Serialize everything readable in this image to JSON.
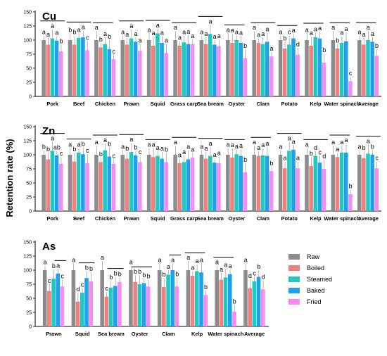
{
  "ylabel": "Retention rate (%)",
  "legend": [
    {
      "name": "Raw",
      "color": "#8c8c8c"
    },
    {
      "name": "Boiled",
      "color": "#f08080"
    },
    {
      "name": "Steamed",
      "color": "#1fc9c1"
    },
    {
      "name": "Baked",
      "color": "#1ea0ee"
    },
    {
      "name": "Fried",
      "color": "#f58cf5"
    }
  ],
  "chart_data": [
    {
      "type": "bar",
      "panel": "Cu",
      "ylim": [
        0,
        150
      ],
      "yticks": [
        0,
        25,
        50,
        75,
        100,
        125,
        150
      ],
      "categories": [
        "Pork",
        "Beef",
        "Chicken",
        "Prawn",
        "Squid",
        "Grass carp",
        "Sea bream",
        "Oyster",
        "Clam",
        "Potato",
        "Kelp",
        "Water spinach",
        "Average"
      ],
      "series": [
        {
          "name": "Raw",
          "values": [
            100,
            100,
            100,
            100,
            100,
            100,
            100,
            100,
            100,
            100,
            100,
            100,
            100
          ]
        },
        {
          "name": "Boiled",
          "values": [
            92,
            92,
            87,
            92,
            90,
            90,
            93,
            95,
            95,
            85,
            90,
            85,
            92
          ]
        },
        {
          "name": "Steamed",
          "values": [
            103,
            104,
            93,
            103,
            112,
            96,
            111,
            100,
            93,
            92,
            105,
            95,
            100
          ]
        },
        {
          "name": "Baked",
          "values": [
            99,
            105,
            84,
            97,
            95,
            93,
            92,
            95,
            97,
            103,
            103,
            98,
            97
          ]
        },
        {
          "name": "Fried",
          "values": [
            80,
            82,
            66,
            81,
            77,
            93,
            89,
            68,
            71,
            74,
            60,
            27,
            72
          ]
        }
      ],
      "letters": [
        [
          "a",
          "a",
          "a",
          "a",
          "b"
        ],
        [
          "b",
          "b",
          "a",
          "a",
          "c"
        ],
        [
          "a",
          "b",
          "a",
          "b",
          "c"
        ],
        [
          "a",
          "a",
          "a",
          "a",
          "a"
        ],
        [
          "a",
          "a",
          "a",
          "a",
          "a"
        ],
        [
          "a",
          "a",
          "a",
          "a",
          "a"
        ],
        [
          "a",
          "a",
          "a",
          "a",
          "a"
        ],
        [
          "a",
          "a",
          "a",
          "a",
          "b"
        ],
        [
          "a",
          "a",
          "a",
          "a",
          "a"
        ],
        [
          "a",
          "b",
          "c",
          "a",
          "d"
        ],
        [
          "a",
          "a",
          "a",
          "a",
          "b"
        ],
        [
          "a",
          "b",
          "a",
          "a",
          "c"
        ],
        [
          "a",
          "a",
          "a",
          "a",
          "b"
        ]
      ],
      "groups": [
        [
          0,
          4
        ],
        [
          0,
          4
        ],
        [
          0,
          3
        ],
        [
          0,
          4
        ],
        [
          0,
          4
        ],
        [
          0,
          4
        ],
        [
          0,
          4
        ],
        [
          0,
          3
        ],
        [
          0,
          4
        ],
        [
          0,
          3
        ],
        [
          0,
          3
        ],
        [
          0,
          3
        ],
        [
          0,
          3
        ]
      ]
    },
    {
      "type": "bar",
      "panel": "Zn",
      "ylim": [
        0,
        150
      ],
      "yticks": [
        0,
        25,
        50,
        75,
        100,
        125,
        150
      ],
      "categories": [
        "Pork",
        "Beef",
        "Chicken",
        "Prawn",
        "Squid",
        "Grass carp",
        "Sea bream",
        "Oyster",
        "Clam",
        "Potato",
        "Kelp",
        "Water spinach",
        "Average"
      ],
      "series": [
        {
          "name": "Raw",
          "values": [
            100,
            100,
            100,
            100,
            100,
            100,
            100,
            100,
            100,
            100,
            100,
            100,
            100
          ]
        },
        {
          "name": "Boiled",
          "values": [
            92,
            88,
            87,
            93,
            96,
            85,
            93,
            95,
            98,
            76,
            80,
            96,
            94
          ]
        },
        {
          "name": "Steamed",
          "values": [
            107,
            104,
            108,
            105,
            98,
            87,
            98,
            101,
            99,
            107,
            98,
            104,
            102
          ]
        },
        {
          "name": "Baked",
          "values": [
            99,
            101,
            97,
            99,
            93,
            92,
            86,
            98,
            98,
            109,
            86,
            104,
            100
          ]
        },
        {
          "name": "Fried",
          "values": [
            84,
            85,
            84,
            87,
            87,
            95,
            85,
            69,
            71,
            76,
            75,
            30,
            76
          ]
        }
      ],
      "letters": [
        [
          "b",
          "b",
          "a",
          "ab",
          "c"
        ],
        [
          "a",
          "b",
          "a",
          "b",
          "c"
        ],
        [
          "a",
          "b",
          "a",
          "b",
          "c"
        ],
        [
          "a",
          "b",
          "a",
          "b",
          "c"
        ],
        [
          "a",
          "a",
          "a",
          "a",
          "b"
        ],
        [
          "a",
          "a",
          "a",
          "a",
          "a"
        ],
        [
          "a",
          "a",
          "a",
          "a",
          "a"
        ],
        [
          "a",
          "a",
          "a",
          "a",
          "b"
        ],
        [
          "a",
          "a",
          "a",
          "a",
          "b"
        ],
        [
          "a",
          "a",
          "a",
          "a",
          "a"
        ],
        [
          "a",
          "b",
          "d",
          "c",
          "d"
        ],
        [
          "a",
          "a",
          "a",
          "a",
          "b"
        ],
        [
          "a",
          "b",
          "a",
          "b",
          "c"
        ]
      ],
      "groups": [
        [
          0,
          4
        ],
        [
          0,
          4
        ],
        [
          0,
          4
        ],
        [
          0,
          4
        ],
        [
          0,
          4
        ],
        [
          0,
          4
        ],
        [
          0,
          4
        ],
        [
          0,
          3
        ],
        [
          0,
          3
        ],
        [
          0,
          4
        ],
        [
          0,
          4
        ],
        [
          0,
          3
        ],
        [
          0,
          4
        ]
      ]
    },
    {
      "type": "bar",
      "panel": "As",
      "ylim": [
        0,
        150
      ],
      "yticks": [
        0,
        25,
        50,
        75,
        100,
        125,
        150
      ],
      "categories": [
        "Prawn",
        "Squid",
        "Sea bream",
        "Oyster",
        "Clam",
        "Kelp",
        "Water spinach",
        "Average"
      ],
      "series": [
        {
          "name": "Raw",
          "values": [
            100,
            100,
            100,
            100,
            100,
            100,
            100,
            100
          ]
        },
        {
          "name": "Boiled",
          "values": [
            63,
            44,
            53,
            79,
            70,
            90,
            83,
            68
          ]
        },
        {
          "name": "Steamed",
          "values": [
            85,
            60,
            69,
            75,
            92,
            98,
            87,
            80
          ]
        },
        {
          "name": "Baked",
          "values": [
            94,
            86,
            72,
            77,
            100,
            96,
            93,
            88
          ]
        },
        {
          "name": "Fried",
          "values": [
            71,
            80,
            79,
            71,
            71,
            56,
            26,
            66
          ]
        }
      ],
      "letters": [
        [
          "a",
          "c",
          "b",
          "a",
          "c"
        ],
        [
          "a",
          "d",
          "c",
          "b",
          "b"
        ],
        [
          "a",
          "c",
          "b",
          "b",
          "b"
        ],
        [
          "a",
          "b",
          "b",
          "b",
          "b"
        ],
        [
          "a",
          "b",
          "a",
          "a",
          "b"
        ],
        [
          "a",
          "a",
          "a",
          "a",
          "b"
        ],
        [
          "a",
          "a",
          "a",
          "a",
          "b"
        ],
        [
          "a",
          "d",
          "c",
          "b",
          "d"
        ]
      ],
      "groups": [
        [
          3,
          4
        ],
        [
          2,
          4
        ],
        [
          2,
          4
        ],
        [
          1,
          4
        ],
        [
          3,
          4
        ],
        [
          0,
          3
        ],
        [
          0,
          3
        ],
        [
          0,
          0
        ]
      ]
    }
  ]
}
